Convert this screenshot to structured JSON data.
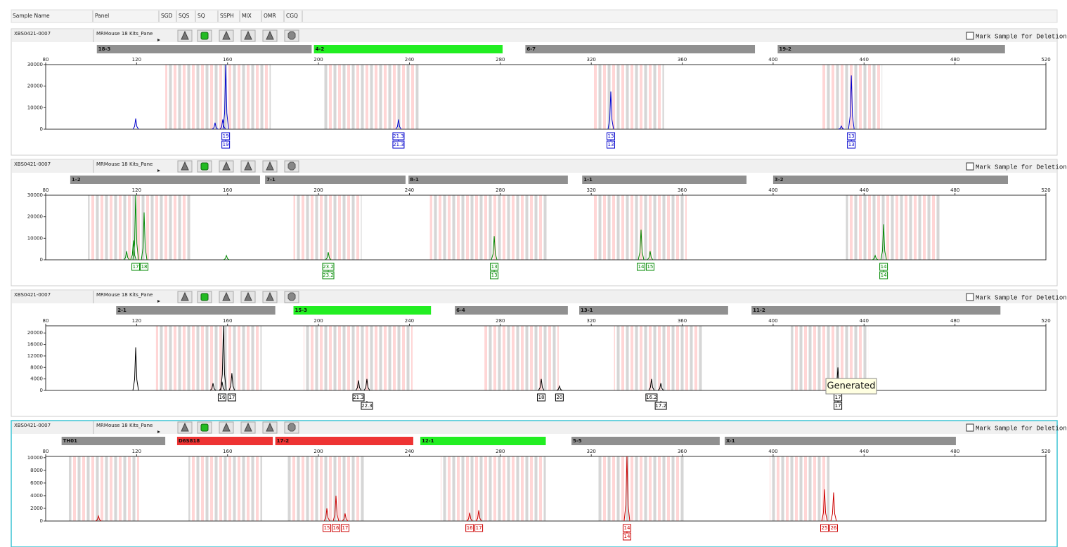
{
  "header": {
    "columns": [
      "Sample Name",
      "Panel",
      "SGD",
      "SQS",
      "SQ",
      "SSPH",
      "MIX",
      "OMR",
      "CGQ"
    ]
  },
  "tooltip": "Generated",
  "panels": [
    {
      "sample_name": "XBS0421-0007",
      "panel": "MRMouse 18 Kits_Pane",
      "mark_label": "Mark Sample for Deletion",
      "color": "#0000cc",
      "loci": [
        {
          "name": "18-3",
          "start": 102.5,
          "end": 197,
          "color": "#909090"
        },
        {
          "name": "4-2",
          "start": 198,
          "end": 281,
          "color": "#22ee22"
        },
        {
          "name": "6-7",
          "start": 291,
          "end": 392,
          "color": "#909090"
        },
        {
          "name": "19-2",
          "start": 402,
          "end": 502,
          "color": "#909090"
        }
      ],
      "xlim": [
        80,
        520
      ],
      "xticks": [
        80,
        120,
        160,
        200,
        240,
        280,
        320,
        360,
        400,
        440,
        480,
        520
      ],
      "ylim": [
        0,
        30000
      ],
      "yticks": [
        0,
        10000,
        20000,
        30000
      ],
      "bins": [
        [
          132.6,
          179
        ],
        [
          202,
          244
        ],
        [
          320.6,
          352
        ],
        [
          421.7,
          448
        ]
      ],
      "peaks": [
        {
          "x": 119.6,
          "height": 5000
        },
        {
          "x": 154.5,
          "height": 3000
        },
        {
          "x": 157.9,
          "height": 4500
        },
        {
          "x": 159.2,
          "height": 30000
        },
        {
          "x": 235.2,
          "height": 4500
        },
        {
          "x": 328.6,
          "height": 17500
        },
        {
          "x": 430,
          "height": 1500
        },
        {
          "x": 434.4,
          "height": 25000
        }
      ],
      "alleles": [
        {
          "x": 159.2,
          "row": 0,
          "label": "19"
        },
        {
          "x": 159.2,
          "row": 1,
          "label": "19"
        },
        {
          "x": 235.2,
          "row": 0,
          "label": "21.3"
        },
        {
          "x": 235.2,
          "row": 1,
          "label": "21.3"
        },
        {
          "x": 328.6,
          "row": 0,
          "label": "13"
        },
        {
          "x": 328.6,
          "row": 1,
          "label": "13"
        },
        {
          "x": 434.4,
          "row": 0,
          "label": "13"
        },
        {
          "x": 434.4,
          "row": 1,
          "label": "13"
        }
      ]
    },
    {
      "sample_name": "XBS0421-0007",
      "panel": "MRMouse 18 Kits_Pane",
      "mark_label": "Mark Sample for Deletion",
      "color": "#008800",
      "loci": [
        {
          "name": "1-2",
          "start": 90.8,
          "end": 174.3,
          "color": "#909090"
        },
        {
          "name": "7-1",
          "start": 176.5,
          "end": 238.3,
          "color": "#909090"
        },
        {
          "name": "8-1",
          "start": 239.6,
          "end": 309.7,
          "color": "#909090"
        },
        {
          "name": "1-1",
          "start": 316,
          "end": 388.3,
          "color": "#909090"
        },
        {
          "name": "3-2",
          "start": 400,
          "end": 503.3,
          "color": "#909090"
        }
      ],
      "xlim": [
        80,
        520
      ],
      "xticks": [
        80,
        120,
        160,
        200,
        240,
        280,
        320,
        360,
        400,
        440,
        480,
        520
      ],
      "ylim": [
        0,
        30000
      ],
      "yticks": [
        0,
        10000,
        20000,
        30000
      ],
      "bins": [
        [
          98.6,
          144.3
        ],
        [
          189,
          219
        ],
        [
          249,
          300.5
        ],
        [
          321,
          362
        ],
        [
          432,
          473.6
        ]
      ],
      "peaks": [
        {
          "x": 115.6,
          "height": 4000
        },
        {
          "x": 118.6,
          "height": 9000
        },
        {
          "x": 119.6,
          "height": 30000
        },
        {
          "x": 123.3,
          "height": 22000
        },
        {
          "x": 159.5,
          "height": 2000
        },
        {
          "x": 204.3,
          "height": 3500
        },
        {
          "x": 277.3,
          "height": 11000
        },
        {
          "x": 341.9,
          "height": 14000
        },
        {
          "x": 345.9,
          "height": 4000
        },
        {
          "x": 444.9,
          "height": 2000
        },
        {
          "x": 448.6,
          "height": 16500
        }
      ],
      "alleles": [
        {
          "x": 119.6,
          "row": 0,
          "label": "17"
        },
        {
          "x": 123.3,
          "row": 0,
          "label": "18"
        },
        {
          "x": 204.3,
          "row": 0,
          "label": "23.2"
        },
        {
          "x": 204.3,
          "row": 1,
          "label": "23.2"
        },
        {
          "x": 277.3,
          "row": 0,
          "label": "13"
        },
        {
          "x": 277.3,
          "row": 1,
          "label": "13"
        },
        {
          "x": 341.9,
          "row": 0,
          "label": "14"
        },
        {
          "x": 345.9,
          "row": 0,
          "label": "15"
        },
        {
          "x": 448.6,
          "row": 0,
          "label": "14"
        },
        {
          "x": 448.6,
          "row": 1,
          "label": "14"
        }
      ]
    },
    {
      "sample_name": "XBS0421-0007",
      "panel": "MRMouse 18 Kits_Pane",
      "mark_label": "Mark Sample for Deletion",
      "color": "#000000",
      "loci": [
        {
          "name": "2-1",
          "start": 111,
          "end": 181,
          "color": "#909090"
        },
        {
          "name": "15-3",
          "start": 189,
          "end": 249.5,
          "color": "#22ee22"
        },
        {
          "name": "6-4",
          "start": 260,
          "end": 309.7,
          "color": "#909090"
        },
        {
          "name": "13-1",
          "start": 314.7,
          "end": 380.2,
          "color": "#909090"
        },
        {
          "name": "11-2",
          "start": 390.5,
          "end": 500,
          "color": "#909090"
        }
      ],
      "xlim": [
        80,
        520
      ],
      "xticks": [
        80,
        120,
        160,
        200,
        240,
        280,
        320,
        360,
        400,
        440,
        480,
        520
      ],
      "ylim": [
        0,
        22500
      ],
      "yticks": [
        0,
        4000,
        8000,
        12000,
        16000,
        20000
      ],
      "bins": [
        [
          128.5,
          175
        ],
        [
          193.5,
          241.4
        ],
        [
          273,
          305.7
        ],
        [
          330,
          369
        ],
        [
          407.8,
          441.8
        ]
      ],
      "peaks": [
        {
          "x": 119.6,
          "height": 15000
        },
        {
          "x": 153.6,
          "height": 2500
        },
        {
          "x": 157.6,
          "height": 3000
        },
        {
          "x": 158.2,
          "height": 22500
        },
        {
          "x": 161.9,
          "height": 6000
        },
        {
          "x": 217.6,
          "height": 3500
        },
        {
          "x": 221.3,
          "height": 4000
        },
        {
          "x": 298,
          "height": 4000
        },
        {
          "x": 306,
          "height": 1500
        },
        {
          "x": 346.5,
          "height": 4000
        },
        {
          "x": 350.6,
          "height": 2500
        },
        {
          "x": 428.5,
          "height": 8000
        }
      ],
      "alleles": [
        {
          "x": 157.6,
          "row": 0,
          "label": "16"
        },
        {
          "x": 161.9,
          "row": 0,
          "label": "17"
        },
        {
          "x": 217.6,
          "row": 0,
          "label": "21.3"
        },
        {
          "x": 221.3,
          "row": 1,
          "label": "22.3"
        },
        {
          "x": 298,
          "row": 0,
          "label": "18"
        },
        {
          "x": 306,
          "row": 0,
          "label": "20"
        },
        {
          "x": 346.5,
          "row": 0,
          "label": "16.2"
        },
        {
          "x": 350.6,
          "row": 1,
          "label": "17.2"
        },
        {
          "x": 428.5,
          "row": 0,
          "label": "17"
        },
        {
          "x": 428.5,
          "row": 1,
          "label": "17"
        }
      ]
    },
    {
      "sample_name": "XBS0421-0007",
      "panel": "MRMouse 18 Kits_Pane",
      "mark_label": "Mark Sample for Deletion",
      "color": "#cc0000",
      "loci": [
        {
          "name": "TH01",
          "start": 87,
          "end": 132.6,
          "color": "#909090"
        },
        {
          "name": "D6S818",
          "start": 137.8,
          "end": 179.9,
          "color": "#ee3333"
        },
        {
          "name": "17-2",
          "start": 181,
          "end": 241.7,
          "color": "#ee3333"
        },
        {
          "name": "12-1",
          "start": 244.8,
          "end": 300,
          "color": "#22ee22"
        },
        {
          "name": "5-5",
          "start": 311.3,
          "end": 376.5,
          "color": "#909090"
        },
        {
          "name": "X-1",
          "start": 378.7,
          "end": 480.4,
          "color": "#909090"
        }
      ],
      "xlim": [
        80,
        520
      ],
      "xticks": [
        80,
        120,
        160,
        200,
        240,
        280,
        320,
        360,
        400,
        440,
        480,
        520
      ],
      "ylim": [
        0,
        10200
      ],
      "yticks": [
        0,
        2000,
        4000,
        6000,
        8000,
        10000
      ],
      "bins": [
        [
          90.2,
          121.1
        ],
        [
          142.8,
          175.2
        ],
        [
          186,
          220
        ],
        [
          253.8,
          300
        ],
        [
          322.7,
          360.8
        ],
        [
          398.5,
          424.8
        ]
      ],
      "peaks": [
        {
          "x": 103.2,
          "height": 800
        },
        {
          "x": 203.7,
          "height": 2000
        },
        {
          "x": 207.7,
          "height": 4000
        },
        {
          "x": 211.7,
          "height": 1200
        },
        {
          "x": 266.5,
          "height": 1300
        },
        {
          "x": 270.5,
          "height": 1700
        },
        {
          "x": 335.7,
          "height": 10200
        },
        {
          "x": 422.6,
          "height": 5000
        },
        {
          "x": 426.6,
          "height": 4500
        }
      ],
      "alleles": [
        {
          "x": 203.7,
          "row": 0,
          "label": "15"
        },
        {
          "x": 207.7,
          "row": 0,
          "label": "16"
        },
        {
          "x": 211.7,
          "row": 0,
          "label": "17"
        },
        {
          "x": 266.5,
          "row": 0,
          "label": "16"
        },
        {
          "x": 270.5,
          "row": 0,
          "label": "17"
        },
        {
          "x": 335.7,
          "row": 0,
          "label": "14"
        },
        {
          "x": 335.7,
          "row": 1,
          "label": "14"
        },
        {
          "x": 422.6,
          "row": 0,
          "label": "25"
        },
        {
          "x": 426.6,
          "row": 0,
          "label": "26"
        }
      ]
    }
  ]
}
